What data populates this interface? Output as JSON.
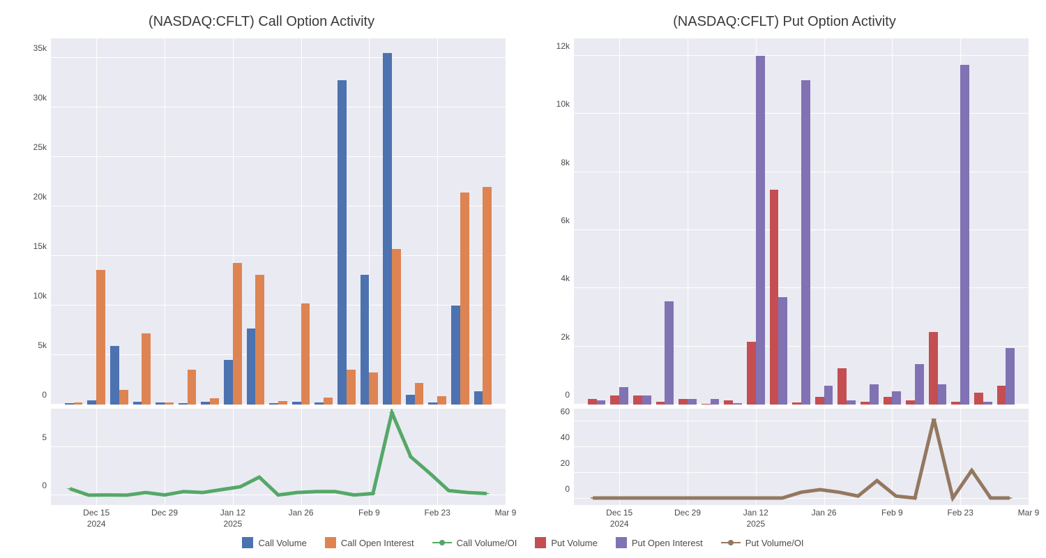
{
  "colors": {
    "plot_bg": "#eaeaf2",
    "grid": "#ffffff",
    "call_vol": "#4c72b0",
    "call_oi": "#dd8452",
    "call_ratio": "#55a868",
    "put_vol": "#c44e52",
    "put_oi": "#8172b3",
    "put_ratio": "#937860",
    "text": "#4a4a4a"
  },
  "left": {
    "title": "(NASDAQ:CFLT) Call Option Activity",
    "main": {
      "ylim": [
        0,
        37000
      ],
      "yticks": [
        0,
        5000,
        10000,
        15000,
        20000,
        25000,
        30000,
        35000
      ],
      "yticklabels": [
        "0",
        "5k",
        "10k",
        "15k",
        "20k",
        "25k",
        "30k",
        "35k"
      ],
      "series": [
        {
          "key": "call_vol",
          "values": [
            150,
            450,
            5900,
            300,
            200,
            150,
            250,
            4500,
            7700,
            150,
            250,
            200,
            32800,
            13100,
            35500,
            950,
            200,
            10000,
            1300
          ]
        },
        {
          "key": "call_oi",
          "values": [
            200,
            13600,
            1500,
            7200,
            200,
            3500,
            600,
            14300,
            13100,
            350,
            10200,
            700,
            3500,
            3200,
            15700,
            2200,
            850,
            21400,
            22000
          ]
        }
      ]
    },
    "sub": {
      "ylim": [
        -1,
        9
      ],
      "yticks": [
        0,
        5
      ],
      "yticklabels": [
        "0",
        "5"
      ],
      "ratio": {
        "key": "call_ratio",
        "values": [
          0.7,
          0.03,
          0.05,
          0.03,
          0.3,
          0.05,
          0.4,
          0.3,
          0.6,
          0.9,
          1.9,
          0.05,
          0.3,
          0.4,
          0.4,
          0.05,
          0.2,
          8.6,
          4.0,
          2.3,
          0.5,
          0.3,
          0.2
        ]
      }
    }
  },
  "right": {
    "title": "(NASDAQ:CFLT) Put Option Activity",
    "main": {
      "ylim": [
        0,
        12600
      ],
      "yticks": [
        0,
        2000,
        4000,
        6000,
        8000,
        10000,
        12000
      ],
      "yticklabels": [
        "0",
        "2k",
        "4k",
        "6k",
        "8k",
        "10k",
        "12k"
      ],
      "series": [
        {
          "key": "put_vol",
          "values": [
            200,
            300,
            300,
            100,
            200,
            30,
            150,
            2150,
            7400,
            60,
            250,
            1250,
            100,
            250,
            150,
            2500,
            100,
            400,
            650
          ]
        },
        {
          "key": "put_oi",
          "values": [
            150,
            600,
            300,
            3550,
            200,
            200,
            50,
            12000,
            3700,
            11150,
            650,
            130,
            700,
            450,
            1400,
            700,
            11700,
            100,
            1950
          ]
        }
      ]
    },
    "sub": {
      "ylim": [
        -5,
        70
      ],
      "yticks": [
        0,
        20,
        40,
        60
      ],
      "yticklabels": [
        "0",
        "20",
        "40",
        "60"
      ],
      "ratio": {
        "key": "put_ratio",
        "values": [
          0.5,
          0.5,
          0.5,
          0.5,
          0.5,
          0.5,
          0.5,
          0.5,
          0.5,
          0.5,
          0.5,
          5,
          7,
          5,
          2,
          14,
          2,
          0.5,
          62,
          0.5,
          22,
          0.5,
          0.5
        ]
      }
    }
  },
  "xaxis": {
    "n": 19,
    "line_n": 23,
    "ticks": [
      {
        "pos": 1.5,
        "label": "Dec 15",
        "year": "2024"
      },
      {
        "pos": 4.5,
        "label": "Dec 29"
      },
      {
        "pos": 7.5,
        "label": "Jan 12",
        "year": "2025"
      },
      {
        "pos": 10.5,
        "label": "Jan 26"
      },
      {
        "pos": 13.5,
        "label": "Feb 9"
      },
      {
        "pos": 16.5,
        "label": "Feb 23"
      },
      {
        "pos": 19.5,
        "label": "Mar 9"
      }
    ]
  },
  "legend": [
    {
      "type": "swatch",
      "color_key": "call_vol",
      "label": "Call Volume"
    },
    {
      "type": "swatch",
      "color_key": "call_oi",
      "label": "Call Open Interest"
    },
    {
      "type": "line",
      "color_key": "call_ratio",
      "label": "Call Volume/OI"
    },
    {
      "type": "swatch",
      "color_key": "put_vol",
      "label": "Put Volume"
    },
    {
      "type": "swatch",
      "color_key": "put_oi",
      "label": "Put Open Interest"
    },
    {
      "type": "line",
      "color_key": "put_ratio",
      "label": "Put Volume/OI"
    }
  ]
}
